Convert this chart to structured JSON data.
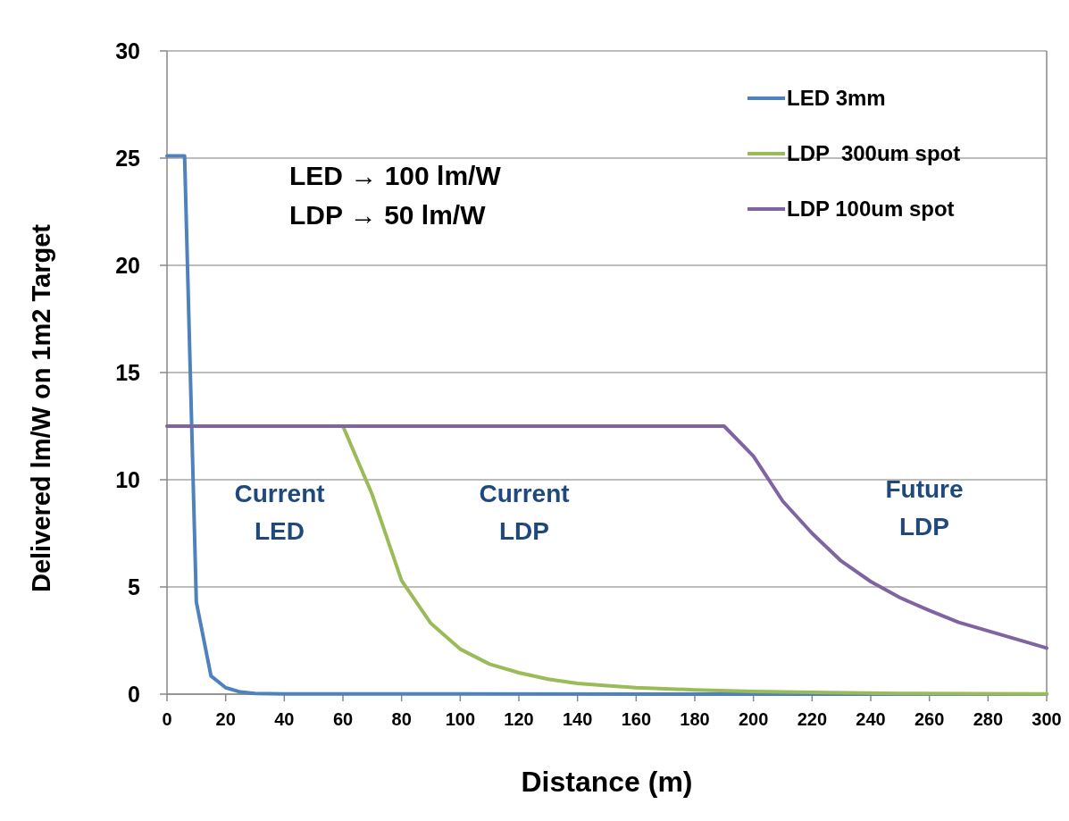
{
  "chart_data": {
    "type": "line",
    "xlabel": "Distance (m)",
    "ylabel": "Delivered lm/W on 1m2 Target",
    "series": [
      {
        "name": "LED 3mm",
        "color": "#4f81bd",
        "x": [
          0,
          6,
          10,
          15,
          20,
          25,
          30,
          40,
          300
        ],
        "values": [
          25.1,
          25.1,
          4.3,
          0.85,
          0.3,
          0.1,
          0.03,
          0.01,
          0
        ]
      },
      {
        "name": "LDP  300um spot",
        "color": "#9bbb59",
        "x": [
          60,
          70,
          80,
          90,
          100,
          110,
          120,
          130,
          140,
          150,
          160,
          180,
          200,
          220,
          250,
          300
        ],
        "values": [
          12.5,
          9.3,
          5.3,
          3.3,
          2.1,
          1.4,
          1.0,
          0.7,
          0.5,
          0.4,
          0.3,
          0.2,
          0.12,
          0.08,
          0.03,
          0.01
        ]
      },
      {
        "name": "LDP 100um spot",
        "color": "#8064a2",
        "x": [
          0,
          190,
          200,
          210,
          220,
          230,
          240,
          250,
          260,
          270,
          300
        ],
        "values": [
          12.5,
          12.5,
          11.1,
          9.0,
          7.5,
          6.2,
          5.25,
          4.5,
          3.9,
          3.35,
          2.15
        ]
      }
    ],
    "xlim": [
      0,
      300
    ],
    "xticks": [
      0,
      20,
      40,
      60,
      80,
      100,
      120,
      140,
      160,
      180,
      200,
      220,
      240,
      260,
      280,
      300
    ],
    "ylim": [
      0,
      30
    ],
    "yticks": [
      0,
      5,
      10,
      15,
      20,
      25,
      30
    ],
    "grid": "y",
    "legend": "top right",
    "marker": "none",
    "line_style": "solid",
    "annotations": [
      "LED → 100 lm/W\nLDP → 50 lm/W",
      "Current\nLED",
      "Current\nLDP",
      "Future\nLDP"
    ]
  }
}
